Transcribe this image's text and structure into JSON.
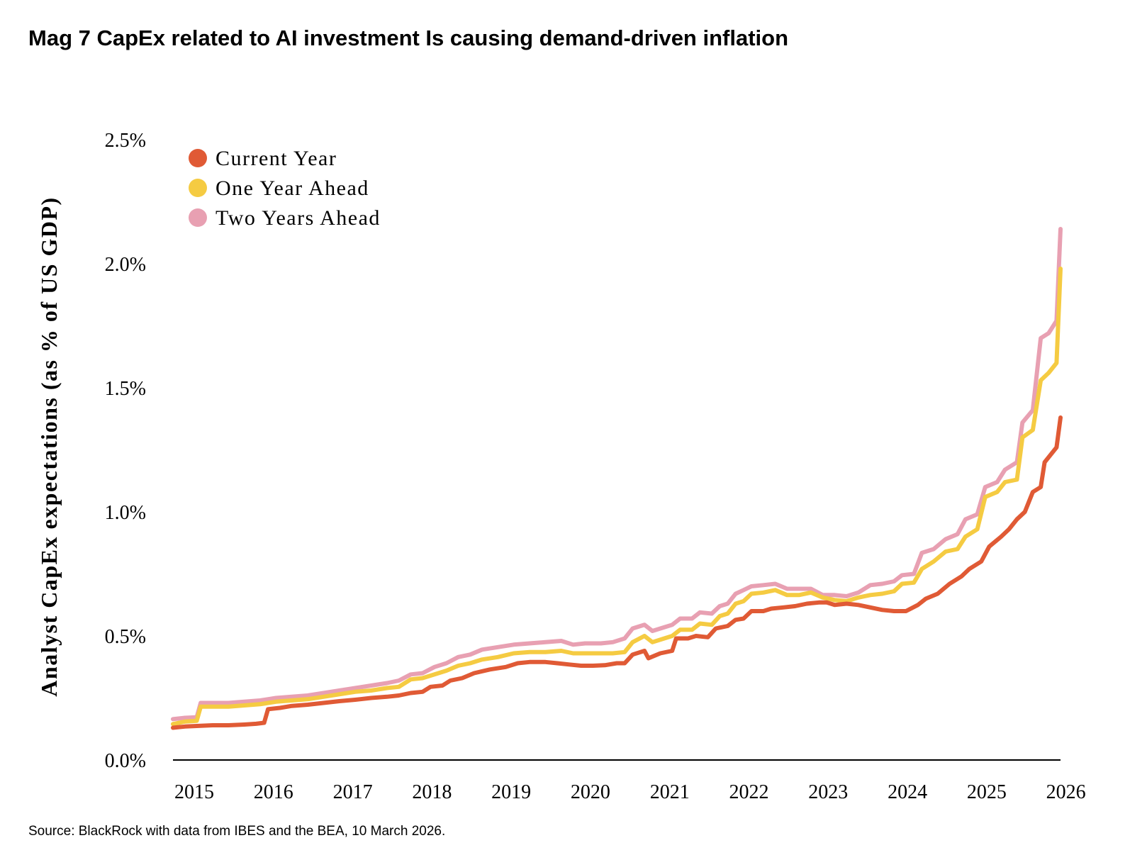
{
  "title": "Mag 7 CapEx related to AI investment Is causing demand-driven inflation",
  "source": "Source: BlackRock with data from IBES and the BEA, 10 March 2026.",
  "chart_data": {
    "type": "line",
    "ylabel": "Analyst CapEx expectations (as % of US GDP)",
    "xlabel": "",
    "ylim": [
      0.0,
      2.5
    ],
    "yticks": [
      0.0,
      0.5,
      1.0,
      1.5,
      2.0,
      2.5
    ],
    "ytick_labels": [
      "0.0%",
      "0.5%",
      "1.0%",
      "1.5%",
      "2.0%",
      "2.5%"
    ],
    "xlim": [
      2015.0,
      2026.2
    ],
    "xticks": [
      2015,
      2016,
      2017,
      2018,
      2019,
      2020,
      2021,
      2022,
      2023,
      2024,
      2025,
      2026
    ],
    "xtick_labels": [
      "2015",
      "2016",
      "2017",
      "2018",
      "2019",
      "2020",
      "2021",
      "2022",
      "2023",
      "2024",
      "2025",
      "2026"
    ],
    "grid": false,
    "legend_position": "top-left",
    "series": [
      {
        "name": "Current Year",
        "color": "#E05A35",
        "points": [
          [
            2015.0,
            0.13
          ],
          [
            2015.15,
            0.135
          ],
          [
            2015.3,
            0.137
          ],
          [
            2015.5,
            0.14
          ],
          [
            2015.7,
            0.14
          ],
          [
            2015.9,
            0.143
          ],
          [
            2016.05,
            0.146
          ],
          [
            2016.15,
            0.15
          ],
          [
            2016.2,
            0.205
          ],
          [
            2016.35,
            0.21
          ],
          [
            2016.5,
            0.218
          ],
          [
            2016.7,
            0.223
          ],
          [
            2016.9,
            0.23
          ],
          [
            2017.1,
            0.237
          ],
          [
            2017.3,
            0.243
          ],
          [
            2017.5,
            0.25
          ],
          [
            2017.7,
            0.255
          ],
          [
            2017.85,
            0.26
          ],
          [
            2018.0,
            0.27
          ],
          [
            2018.15,
            0.275
          ],
          [
            2018.25,
            0.295
          ],
          [
            2018.4,
            0.3
          ],
          [
            2018.5,
            0.32
          ],
          [
            2018.65,
            0.33
          ],
          [
            2018.8,
            0.35
          ],
          [
            2019.0,
            0.365
          ],
          [
            2019.2,
            0.375
          ],
          [
            2019.35,
            0.39
          ],
          [
            2019.5,
            0.395
          ],
          [
            2019.7,
            0.395
          ],
          [
            2019.85,
            0.39
          ],
          [
            2020.0,
            0.385
          ],
          [
            2020.15,
            0.38
          ],
          [
            2020.3,
            0.38
          ],
          [
            2020.45,
            0.382
          ],
          [
            2020.6,
            0.39
          ],
          [
            2020.7,
            0.39
          ],
          [
            2020.8,
            0.425
          ],
          [
            2020.95,
            0.44
          ],
          [
            2021.0,
            0.41
          ],
          [
            2021.15,
            0.43
          ],
          [
            2021.3,
            0.44
          ],
          [
            2021.35,
            0.49
          ],
          [
            2021.5,
            0.49
          ],
          [
            2021.6,
            0.5
          ],
          [
            2021.75,
            0.495
          ],
          [
            2021.85,
            0.53
          ],
          [
            2022.0,
            0.54
          ],
          [
            2022.1,
            0.565
          ],
          [
            2022.2,
            0.57
          ],
          [
            2022.3,
            0.6
          ],
          [
            2022.45,
            0.6
          ],
          [
            2022.55,
            0.61
          ],
          [
            2022.7,
            0.615
          ],
          [
            2022.85,
            0.62
          ],
          [
            2023.0,
            0.63
          ],
          [
            2023.15,
            0.635
          ],
          [
            2023.25,
            0.635
          ],
          [
            2023.35,
            0.625
          ],
          [
            2023.5,
            0.63
          ],
          [
            2023.65,
            0.625
          ],
          [
            2023.8,
            0.615
          ],
          [
            2023.95,
            0.605
          ],
          [
            2024.1,
            0.6
          ],
          [
            2024.25,
            0.6
          ],
          [
            2024.4,
            0.625
          ],
          [
            2024.5,
            0.65
          ],
          [
            2024.65,
            0.67
          ],
          [
            2024.8,
            0.71
          ],
          [
            2024.95,
            0.74
          ],
          [
            2025.05,
            0.77
          ],
          [
            2025.2,
            0.8
          ],
          [
            2025.3,
            0.86
          ],
          [
            2025.45,
            0.9
          ],
          [
            2025.55,
            0.93
          ],
          [
            2025.65,
            0.97
          ],
          [
            2025.75,
            1.0
          ],
          [
            2025.85,
            1.08
          ],
          [
            2025.95,
            1.1
          ],
          [
            2026.0,
            1.2
          ],
          [
            2026.15,
            1.26
          ],
          [
            2026.2,
            1.38
          ]
        ]
      },
      {
        "name": "One Year Ahead",
        "color": "#F5CB42",
        "points": [
          [
            2015.0,
            0.145
          ],
          [
            2015.15,
            0.155
          ],
          [
            2015.3,
            0.158
          ],
          [
            2015.35,
            0.215
          ],
          [
            2015.5,
            0.215
          ],
          [
            2015.7,
            0.215
          ],
          [
            2015.9,
            0.22
          ],
          [
            2016.1,
            0.225
          ],
          [
            2016.3,
            0.235
          ],
          [
            2016.5,
            0.24
          ],
          [
            2016.7,
            0.245
          ],
          [
            2016.9,
            0.255
          ],
          [
            2017.1,
            0.265
          ],
          [
            2017.3,
            0.275
          ],
          [
            2017.5,
            0.28
          ],
          [
            2017.7,
            0.29
          ],
          [
            2017.85,
            0.295
          ],
          [
            2018.0,
            0.325
          ],
          [
            2018.15,
            0.33
          ],
          [
            2018.3,
            0.345
          ],
          [
            2018.45,
            0.36
          ],
          [
            2018.6,
            0.38
          ],
          [
            2018.75,
            0.39
          ],
          [
            2018.9,
            0.405
          ],
          [
            2019.1,
            0.415
          ],
          [
            2019.3,
            0.43
          ],
          [
            2019.5,
            0.435
          ],
          [
            2019.7,
            0.435
          ],
          [
            2019.9,
            0.44
          ],
          [
            2020.05,
            0.43
          ],
          [
            2020.2,
            0.43
          ],
          [
            2020.4,
            0.43
          ],
          [
            2020.55,
            0.43
          ],
          [
            2020.7,
            0.435
          ],
          [
            2020.8,
            0.475
          ],
          [
            2020.95,
            0.5
          ],
          [
            2021.05,
            0.475
          ],
          [
            2021.2,
            0.49
          ],
          [
            2021.3,
            0.5
          ],
          [
            2021.4,
            0.525
          ],
          [
            2021.55,
            0.525
          ],
          [
            2021.65,
            0.55
          ],
          [
            2021.8,
            0.545
          ],
          [
            2021.9,
            0.58
          ],
          [
            2022.0,
            0.59
          ],
          [
            2022.1,
            0.63
          ],
          [
            2022.2,
            0.64
          ],
          [
            2022.3,
            0.67
          ],
          [
            2022.45,
            0.675
          ],
          [
            2022.6,
            0.685
          ],
          [
            2022.75,
            0.665
          ],
          [
            2022.9,
            0.665
          ],
          [
            2023.05,
            0.675
          ],
          [
            2023.2,
            0.655
          ],
          [
            2023.35,
            0.645
          ],
          [
            2023.5,
            0.64
          ],
          [
            2023.65,
            0.655
          ],
          [
            2023.8,
            0.665
          ],
          [
            2023.95,
            0.67
          ],
          [
            2024.1,
            0.68
          ],
          [
            2024.2,
            0.71
          ],
          [
            2024.35,
            0.715
          ],
          [
            2024.45,
            0.77
          ],
          [
            2024.6,
            0.8
          ],
          [
            2024.75,
            0.84
          ],
          [
            2024.9,
            0.85
          ],
          [
            2025.0,
            0.9
          ],
          [
            2025.15,
            0.93
          ],
          [
            2025.25,
            1.06
          ],
          [
            2025.4,
            1.08
          ],
          [
            2025.5,
            1.12
          ],
          [
            2025.65,
            1.13
          ],
          [
            2025.72,
            1.3
          ],
          [
            2025.85,
            1.33
          ],
          [
            2025.95,
            1.53
          ],
          [
            2026.05,
            1.56
          ],
          [
            2026.15,
            1.6
          ],
          [
            2026.2,
            1.98
          ]
        ]
      },
      {
        "name": "Two Years Ahead",
        "color": "#E8A0B2",
        "points": [
          [
            2015.0,
            0.165
          ],
          [
            2015.15,
            0.17
          ],
          [
            2015.3,
            0.172
          ],
          [
            2015.35,
            0.23
          ],
          [
            2015.5,
            0.23
          ],
          [
            2015.7,
            0.23
          ],
          [
            2015.9,
            0.235
          ],
          [
            2016.1,
            0.24
          ],
          [
            2016.3,
            0.25
          ],
          [
            2016.5,
            0.255
          ],
          [
            2016.7,
            0.26
          ],
          [
            2016.9,
            0.27
          ],
          [
            2017.1,
            0.28
          ],
          [
            2017.3,
            0.29
          ],
          [
            2017.5,
            0.3
          ],
          [
            2017.7,
            0.31
          ],
          [
            2017.85,
            0.32
          ],
          [
            2018.0,
            0.345
          ],
          [
            2018.15,
            0.35
          ],
          [
            2018.3,
            0.375
          ],
          [
            2018.45,
            0.39
          ],
          [
            2018.6,
            0.415
          ],
          [
            2018.75,
            0.425
          ],
          [
            2018.9,
            0.445
          ],
          [
            2019.1,
            0.455
          ],
          [
            2019.3,
            0.465
          ],
          [
            2019.5,
            0.47
          ],
          [
            2019.7,
            0.475
          ],
          [
            2019.9,
            0.48
          ],
          [
            2020.05,
            0.465
          ],
          [
            2020.2,
            0.47
          ],
          [
            2020.4,
            0.47
          ],
          [
            2020.55,
            0.475
          ],
          [
            2020.7,
            0.49
          ],
          [
            2020.8,
            0.53
          ],
          [
            2020.95,
            0.545
          ],
          [
            2021.05,
            0.52
          ],
          [
            2021.2,
            0.535
          ],
          [
            2021.3,
            0.545
          ],
          [
            2021.4,
            0.57
          ],
          [
            2021.55,
            0.57
          ],
          [
            2021.65,
            0.595
          ],
          [
            2021.8,
            0.59
          ],
          [
            2021.9,
            0.62
          ],
          [
            2022.0,
            0.63
          ],
          [
            2022.1,
            0.67
          ],
          [
            2022.2,
            0.685
          ],
          [
            2022.3,
            0.7
          ],
          [
            2022.45,
            0.705
          ],
          [
            2022.6,
            0.71
          ],
          [
            2022.75,
            0.69
          ],
          [
            2022.9,
            0.69
          ],
          [
            2023.05,
            0.69
          ],
          [
            2023.2,
            0.665
          ],
          [
            2023.35,
            0.665
          ],
          [
            2023.5,
            0.66
          ],
          [
            2023.65,
            0.675
          ],
          [
            2023.8,
            0.705
          ],
          [
            2023.95,
            0.71
          ],
          [
            2024.1,
            0.72
          ],
          [
            2024.2,
            0.745
          ],
          [
            2024.35,
            0.75
          ],
          [
            2024.45,
            0.835
          ],
          [
            2024.6,
            0.85
          ],
          [
            2024.75,
            0.89
          ],
          [
            2024.9,
            0.91
          ],
          [
            2025.0,
            0.97
          ],
          [
            2025.15,
            0.99
          ],
          [
            2025.25,
            1.1
          ],
          [
            2025.4,
            1.12
          ],
          [
            2025.5,
            1.17
          ],
          [
            2025.65,
            1.2
          ],
          [
            2025.72,
            1.36
          ],
          [
            2025.85,
            1.41
          ],
          [
            2025.95,
            1.7
          ],
          [
            2026.05,
            1.72
          ],
          [
            2026.15,
            1.77
          ],
          [
            2026.2,
            2.14
          ]
        ]
      }
    ]
  }
}
